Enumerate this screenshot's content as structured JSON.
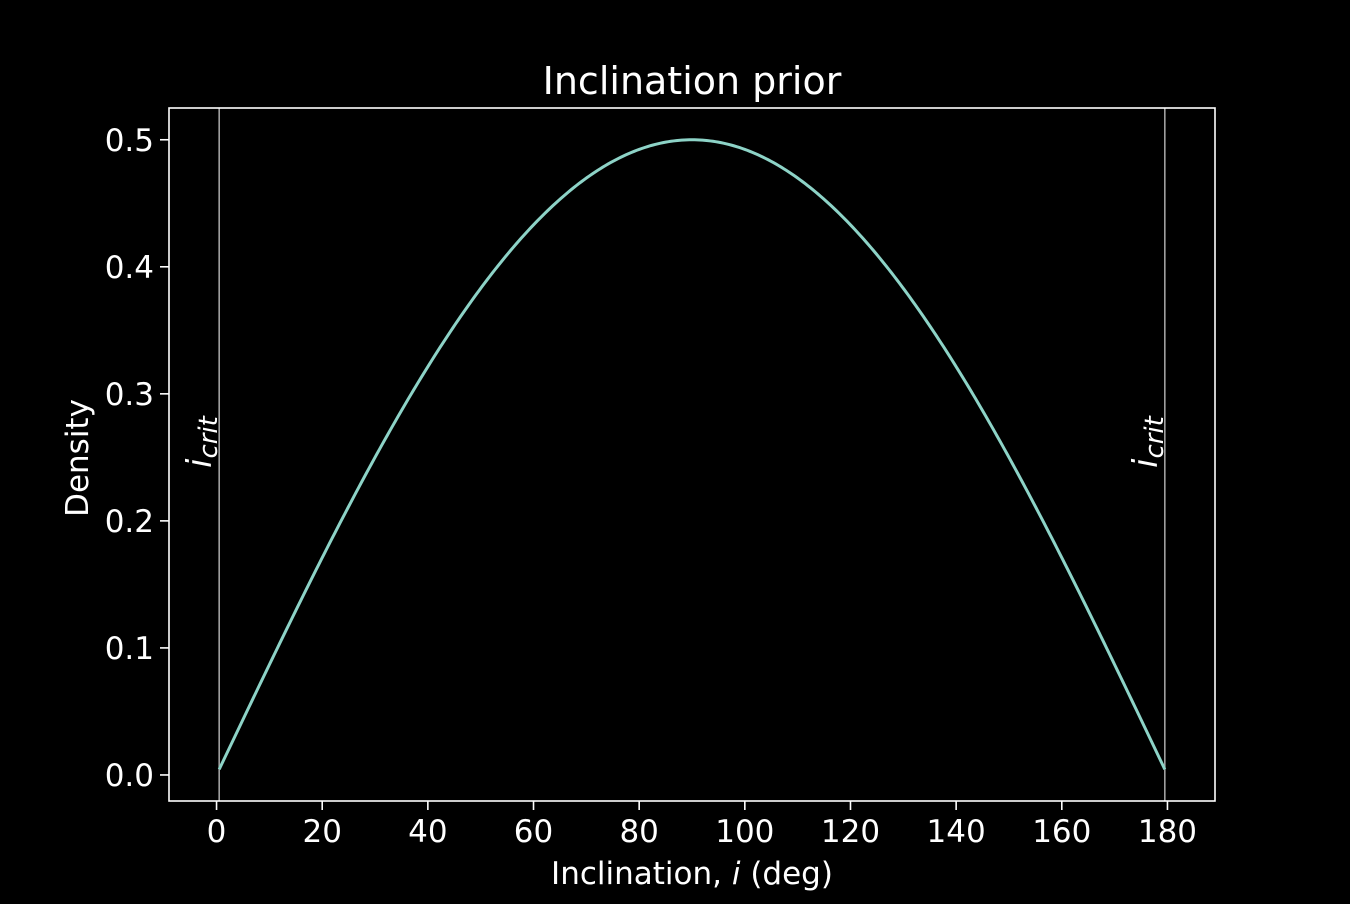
{
  "chart_data": {
    "type": "line",
    "title": "Inclination prior",
    "xlabel_prefix": "Inclination, ",
    "xlabel_var": "i",
    "xlabel_suffix": " (deg)",
    "ylabel": "Density",
    "xlim": [
      -9,
      189
    ],
    "ylim": [
      -0.0205,
      0.525
    ],
    "xticks": [
      0,
      20,
      40,
      60,
      80,
      100,
      120,
      140,
      160,
      180
    ],
    "xtick_labels": [
      "0",
      "20",
      "40",
      "60",
      "80",
      "100",
      "120",
      "140",
      "160",
      "180"
    ],
    "yticks": [
      0.0,
      0.1,
      0.2,
      0.3,
      0.4,
      0.5
    ],
    "ytick_labels": [
      "0.0",
      "0.1",
      "0.2",
      "0.3",
      "0.4",
      "0.5"
    ],
    "grid": false,
    "series": [
      {
        "function": "0.5*sin(x)",
        "x_range": [
          0.5,
          179.5
        ],
        "color": "#8dd3c7"
      }
    ],
    "vlines": [
      {
        "x": 0.5,
        "color": "#a0a0a0",
        "label_main": "i",
        "label_sub": "crit"
      },
      {
        "x": 179.5,
        "color": "#a0a0a0",
        "label_main": "i",
        "label_sub": "crit"
      }
    ]
  }
}
